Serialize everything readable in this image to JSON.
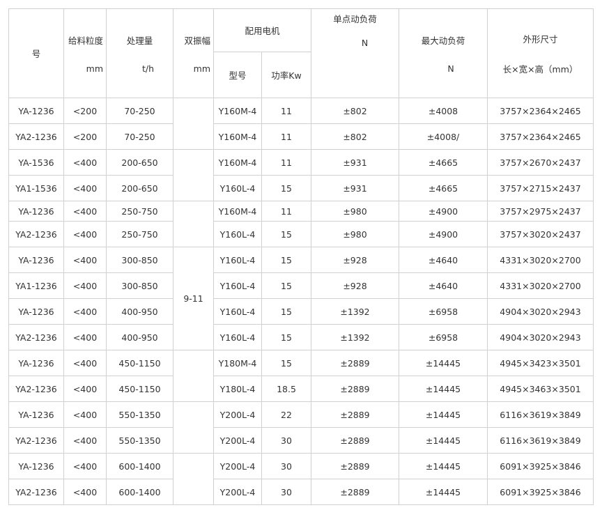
{
  "header": {
    "model": "号",
    "feed_size": {
      "label": "给料粒度",
      "unit": "mm"
    },
    "capacity": {
      "label": "处理量",
      "unit": "t/h"
    },
    "amplitude": {
      "label": "双振幅",
      "unit": "mm"
    },
    "motor": {
      "label": "配用电机",
      "type": "型号",
      "power": "功率Kw"
    },
    "single_load": {
      "label": "单点动负荷",
      "unit": "N"
    },
    "max_load": {
      "label": "最大动负荷",
      "unit": "N"
    },
    "dimensions": {
      "label": "外形尺寸",
      "unit": "长×宽×高（mm）"
    }
  },
  "amplitude_value": "9-11",
  "rows": [
    [
      "YA-1236",
      "<200",
      "70-250",
      "Y160M-4",
      "11",
      "±802",
      "±4008",
      "3757×2364×2465"
    ],
    [
      "YA2-1236",
      "<200",
      "70-250",
      "Y160M-4",
      "11",
      "±802",
      "±4008/",
      "3757×2364×2465"
    ],
    [
      "YA-1536",
      "<400",
      "200-650",
      "Y160M-4",
      "11",
      "±931",
      "±4665",
      "3757×2670×2437"
    ],
    [
      "YA1-1536",
      "<400",
      "200-650",
      "Y160L-4",
      "15",
      "±931",
      "±4665",
      "3757×2715×2437"
    ],
    [
      "YA-1236",
      "<400",
      "250-750",
      "Y160M-4",
      "11",
      "±980",
      "±4900",
      "3757×2975×2437"
    ],
    [
      "YA2-1236",
      "<400",
      "250-750",
      "Y160L-4",
      "15",
      "±980",
      "±4900",
      "3757×3020×2437"
    ],
    [
      "YA-1236",
      "<400",
      "300-850",
      "Y160L-4",
      "15",
      "±928",
      "±4640",
      "4331×3020×2700"
    ],
    [
      "YA1-1236",
      "<400",
      "300-850",
      "Y160L-4",
      "15",
      "±928",
      "±4640",
      "4331×3020×2700"
    ],
    [
      "YA-1236",
      "<400",
      "400-950",
      "Y160L-4",
      "15",
      "±1392",
      "±6958",
      "4904×3020×2943"
    ],
    [
      "YA2-1236",
      "<400",
      "400-950",
      "Y160L-4",
      "15",
      "±1392",
      "±6958",
      "4904×3020×2943"
    ],
    [
      "YA-1236",
      "<400",
      "450-1150",
      "Y180M-4",
      "15",
      "±2889",
      "±14445",
      "4945×3423×3501"
    ],
    [
      "YA2-1236",
      "<400",
      "450-1150",
      "Y180L-4",
      "18.5",
      "±2889",
      "±14445",
      "4945×3463×3501"
    ],
    [
      "YA-1236",
      "<400",
      "550-1350",
      "Y200L-4",
      "22",
      "±2889",
      "±14445",
      "6116×3619×3849"
    ],
    [
      "YA2-1236",
      "<400",
      "550-1350",
      "Y200L-4",
      "30",
      "±2889",
      "±14445",
      "6116×3619×3849"
    ],
    [
      "YA-1236",
      "<400",
      "600-1400",
      "Y200L-4",
      "30",
      "±2889",
      "±14445",
      "6091×3925×3846"
    ],
    [
      "YA2-1236",
      "<400",
      "600-1400",
      "Y200L-4",
      "30",
      "±2889",
      "±14445",
      "6091×3925×3846"
    ]
  ]
}
